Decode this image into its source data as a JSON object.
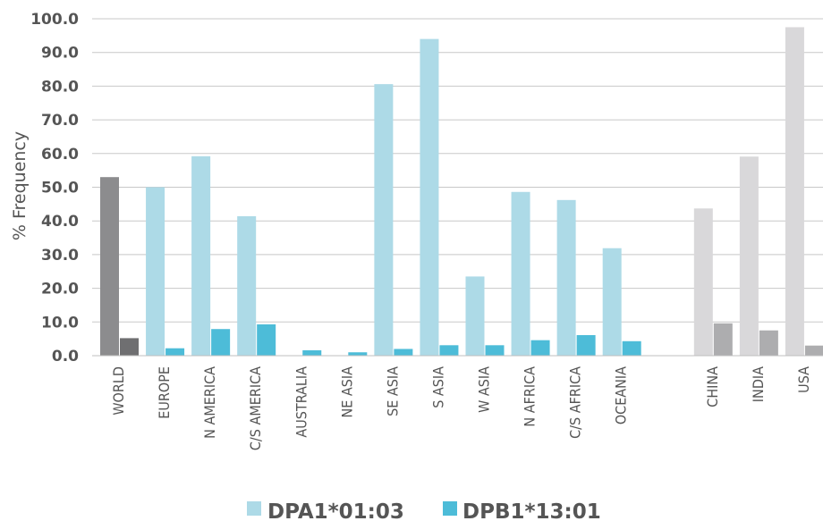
{
  "chart_data": {
    "type": "bar",
    "ylabel": "% Frequency",
    "ylim": [
      0,
      100
    ],
    "yticks": [
      "0.0",
      "10.0",
      "20.0",
      "30.0",
      "40.0",
      "50.0",
      "60.0",
      "70.0",
      "80.0",
      "90.0",
      "100.0"
    ],
    "grid": true,
    "legend_position": "bottom",
    "categories": [
      "WORLD",
      "EUROPE",
      "N AMERICA",
      "C/S AMERICA",
      "AUSTRALIA",
      "NE ASIA",
      "SE ASIA",
      "S ASIA",
      "W ASIA",
      "N AFRICA",
      "C/S AFRICA",
      "OCEANIA",
      "",
      "CHINA",
      "INDIA",
      "USA"
    ],
    "series": [
      {
        "name": "DPA1*01:03",
        "color": "#ADDAE7",
        "values": [
          53.0,
          50.0,
          59.2,
          41.4,
          0,
          0,
          80.6,
          94.0,
          23.5,
          48.6,
          46.2,
          31.9,
          null,
          43.7,
          59.1,
          97.5
        ]
      },
      {
        "name": "DPB1*13:01",
        "color": "#4DBCD8",
        "values": [
          5.2,
          2.2,
          7.9,
          9.3,
          1.6,
          1.0,
          2.0,
          3.1,
          3.1,
          4.6,
          6.1,
          4.3,
          null,
          9.6,
          7.5,
          3.0
        ]
      }
    ],
    "override_colors": {
      "WORLD": [
        "#8C8C8E",
        "#6F6F71"
      ],
      "CHINA": [
        "#D9D8DA",
        "#ADADAF"
      ],
      "INDIA": [
        "#D9D8DA",
        "#ADADAF"
      ],
      "USA": [
        "#D9D8DA",
        "#ADADAF"
      ]
    }
  }
}
